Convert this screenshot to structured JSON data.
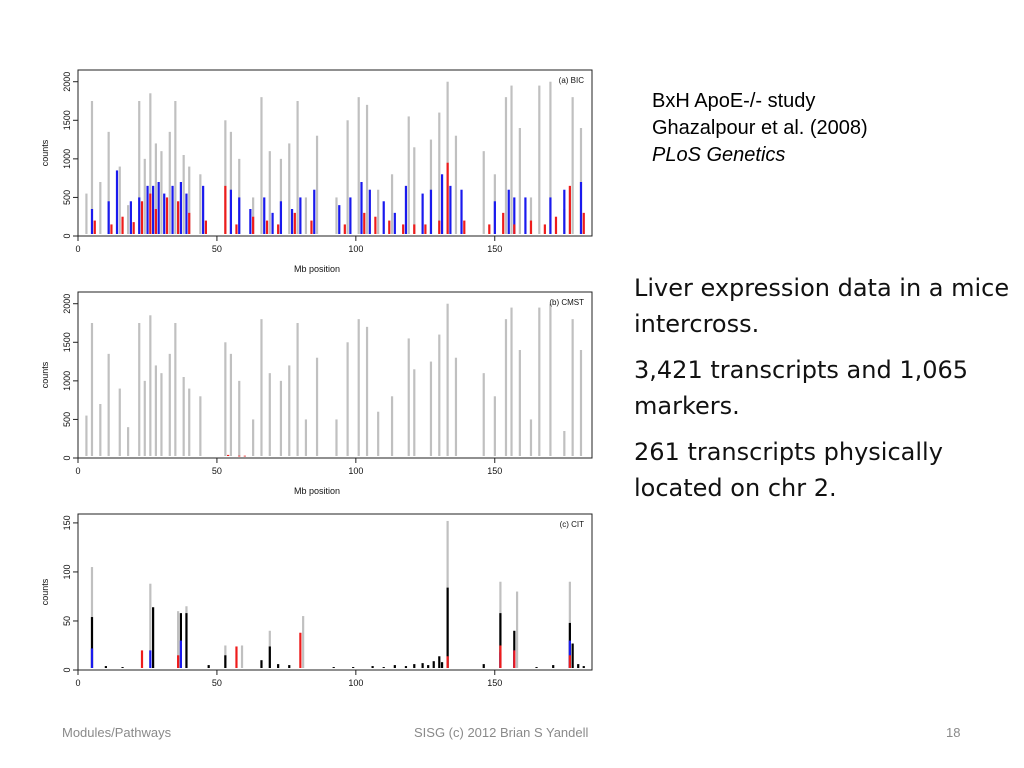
{
  "citation": {
    "line1": "BxH ApoE-/- study",
    "line2": "Ghazalpour et al. (2008)",
    "journal": "PLoS Genetics"
  },
  "description": {
    "para1": "Liver expression data in a mice intercross.",
    "para2": "3,421 transcripts and 1,065 markers.",
    "para3": "261 transcripts physically located on chr 2."
  },
  "footer": {
    "left": "Modules/Pathways",
    "center": "SISG (c) 2012 Brian S Yandell",
    "page": "18"
  },
  "colors": {
    "gray": "#c0c0c0",
    "red": "#ee1c1c",
    "blue": "#1a1aee",
    "black": "#000000"
  },
  "chart_data": [
    {
      "type": "bar",
      "panel_label": "(a) BIC",
      "xlabel": "Mb position",
      "ylabel": "counts",
      "xlim": [
        0,
        185
      ],
      "ylim": [
        0,
        2100
      ],
      "xticks": [
        0,
        50,
        100,
        150
      ],
      "yticks": [
        0,
        500,
        1000,
        1500,
        2000
      ],
      "series": [
        {
          "color": "gray",
          "x": [
            3,
            5,
            8,
            11,
            15,
            18,
            22,
            24,
            26,
            28,
            30,
            33,
            35,
            38,
            40,
            44,
            53,
            55,
            58,
            63,
            66,
            69,
            73,
            76,
            79,
            82,
            86,
            93,
            97,
            101,
            104,
            108,
            113,
            119,
            121,
            127,
            130,
            133,
            136,
            146,
            150,
            154,
            156,
            159,
            163,
            166,
            170,
            175,
            178,
            181
          ],
          "values": [
            550,
            1750,
            700,
            1350,
            900,
            400,
            1750,
            1000,
            1850,
            1200,
            1100,
            1350,
            1750,
            1050,
            900,
            800,
            1500,
            1350,
            1000,
            500,
            1800,
            1100,
            1000,
            1200,
            1750,
            500,
            1300,
            500,
            1500,
            1800,
            1700,
            600,
            800,
            1550,
            1150,
            1250,
            1600,
            2000,
            1300,
            1100,
            800,
            1800,
            1950,
            1400,
            500,
            1950,
            2000,
            350,
            1800,
            1400
          ]
        },
        {
          "color": "blue",
          "x": [
            5,
            11,
            14,
            19,
            22,
            25,
            27,
            29,
            31,
            34,
            37,
            39,
            45,
            55,
            58,
            62,
            67,
            70,
            73,
            77,
            80,
            85,
            94,
            98,
            102,
            105,
            110,
            114,
            118,
            124,
            127,
            131,
            134,
            138,
            150,
            155,
            157,
            161,
            170,
            175,
            181
          ],
          "values": [
            350,
            450,
            850,
            450,
            500,
            650,
            650,
            700,
            550,
            650,
            700,
            550,
            650,
            600,
            500,
            350,
            500,
            300,
            450,
            350,
            500,
            600,
            400,
            500,
            700,
            600,
            450,
            300,
            650,
            550,
            600,
            800,
            650,
            600,
            450,
            600,
            500,
            500,
            500,
            600,
            700
          ]
        },
        {
          "color": "red",
          "x": [
            6,
            12,
            16,
            20,
            23,
            26,
            28,
            32,
            36,
            40,
            46,
            53,
            57,
            63,
            68,
            72,
            78,
            84,
            96,
            103,
            107,
            112,
            117,
            121,
            125,
            130,
            133,
            139,
            148,
            153,
            157,
            163,
            168,
            172,
            177,
            182
          ],
          "values": [
            200,
            150,
            250,
            180,
            450,
            550,
            350,
            500,
            450,
            300,
            200,
            650,
            150,
            250,
            200,
            150,
            300,
            200,
            150,
            300,
            250,
            200,
            150,
            150,
            150,
            200,
            950,
            200,
            150,
            300,
            150,
            200,
            150,
            250,
            650,
            300
          ]
        }
      ]
    },
    {
      "type": "bar",
      "panel_label": "(b) CMST",
      "xlabel": "Mb position",
      "ylabel": "counts",
      "xlim": [
        0,
        185
      ],
      "ylim": [
        0,
        2100
      ],
      "xticks": [
        0,
        50,
        100,
        150
      ],
      "yticks": [
        0,
        500,
        1000,
        1500,
        2000
      ],
      "series": [
        {
          "color": "gray",
          "x": [
            3,
            5,
            8,
            11,
            15,
            18,
            22,
            24,
            26,
            28,
            30,
            33,
            35,
            38,
            40,
            44,
            53,
            55,
            58,
            63,
            66,
            69,
            73,
            76,
            79,
            82,
            86,
            93,
            97,
            101,
            104,
            108,
            113,
            119,
            121,
            127,
            130,
            133,
            136,
            146,
            150,
            154,
            156,
            159,
            163,
            166,
            170,
            175,
            178,
            181
          ],
          "values": [
            550,
            1750,
            700,
            1350,
            900,
            400,
            1750,
            1000,
            1850,
            1200,
            1100,
            1350,
            1750,
            1050,
            900,
            800,
            1500,
            1350,
            1000,
            500,
            1800,
            1100,
            1000,
            1200,
            1750,
            500,
            1300,
            500,
            1500,
            1800,
            1700,
            600,
            800,
            1550,
            1150,
            1250,
            1600,
            2000,
            1300,
            1100,
            800,
            1800,
            1950,
            1400,
            500,
            1950,
            2000,
            350,
            1800,
            1400
          ]
        },
        {
          "color": "red",
          "x": [
            54,
            58,
            60
          ],
          "values": [
            40,
            30,
            30
          ]
        }
      ]
    },
    {
      "type": "bar",
      "panel_label": "(c) CIT",
      "xlabel": "",
      "ylabel": "counts",
      "xlim": [
        0,
        185
      ],
      "ylim": [
        0,
        155
      ],
      "xticks": [
        0,
        50,
        100,
        150
      ],
      "yticks": [
        0,
        50,
        100,
        150
      ],
      "series": [
        {
          "color": "gray",
          "x": [
            5,
            26,
            36,
            39,
            53,
            59,
            69,
            81,
            133,
            152,
            158,
            177
          ],
          "values": [
            105,
            88,
            60,
            65,
            25,
            25,
            40,
            55,
            152,
            90,
            80,
            90
          ]
        },
        {
          "color": "black",
          "x": [
            5,
            27,
            37,
            39,
            53,
            66,
            69,
            133,
            152,
            157,
            177,
            178
          ],
          "values": [
            54,
            64,
            58,
            58,
            15,
            10,
            24,
            84,
            58,
            40,
            48,
            27
          ]
        },
        {
          "color": "blue",
          "x": [
            5,
            26,
            37,
            152,
            157,
            177
          ],
          "values": [
            22,
            20,
            30,
            18,
            20,
            30
          ]
        },
        {
          "color": "red",
          "x": [
            23,
            36,
            57,
            80,
            133,
            152,
            157,
            177
          ],
          "values": [
            20,
            15,
            24,
            38,
            14,
            25,
            20,
            15
          ]
        },
        {
          "color": "black",
          "x": [
            10,
            16,
            47,
            72,
            76,
            92,
            99,
            106,
            110,
            114,
            118,
            121,
            124,
            126,
            128,
            130,
            131,
            146,
            165,
            171,
            180,
            182
          ],
          "values": [
            4,
            3,
            5,
            6,
            5,
            3,
            3,
            4,
            3,
            5,
            4,
            6,
            7,
            5,
            9,
            14,
            8,
            6,
            3,
            5,
            6,
            4
          ]
        }
      ]
    }
  ]
}
